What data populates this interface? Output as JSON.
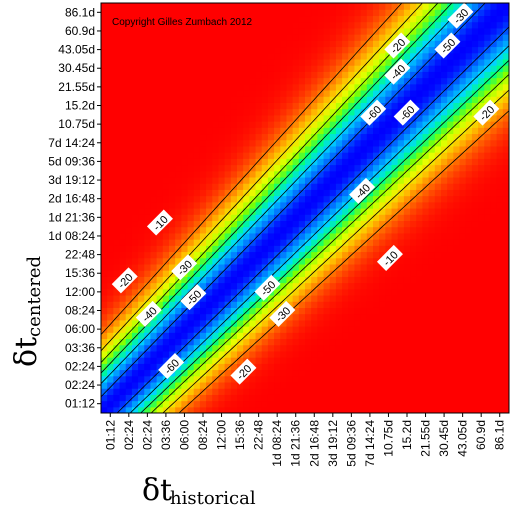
{
  "chart_data": {
    "type": "heatmap",
    "title": "",
    "copyright": "Copyright Gilles Zumbach 2012",
    "xlabel": {
      "symbol": "δt",
      "subscript": "historical"
    },
    "ylabel": {
      "symbol": "δt",
      "subscript": "centered"
    },
    "x_ticks": [
      "01:12",
      "02:24",
      "02:24",
      "03:36",
      "06:00",
      "08:24",
      "12:00",
      "15:36",
      "22:48",
      "1d 08:24",
      "1d 21:36",
      "2d 16:48",
      "3d 19:12",
      "5d 09:36",
      "7d 14:24",
      "10.75d",
      "15.2d",
      "21.55d",
      "30.45d",
      "43.05d",
      "60.9d",
      "86.1d"
    ],
    "y_ticks": [
      "86.1d",
      "60.9d",
      "43.05d",
      "30.45d",
      "21.55d",
      "15.2d",
      "10.75d",
      "7d 14:24",
      "5d 09:36",
      "3d 19:12",
      "2d 16:48",
      "1d 21:36",
      "1d 08:24",
      "22:48",
      "15:36",
      "12:00",
      "08:24",
      "06:00",
      "03:36",
      "02:24",
      "02:24",
      "01:12"
    ],
    "contour_levels": [
      -60,
      -50,
      -40,
      -30,
      -20,
      -10
    ],
    "contour_labels": [
      {
        "text": "-30",
        "x_index": 18.9,
        "y_index": 20.8
      },
      {
        "text": "-20",
        "x_index": 15.5,
        "y_index": 19.2
      },
      {
        "text": "-50",
        "x_index": 18.2,
        "y_index": 19.2
      },
      {
        "text": "-40",
        "x_index": 15.5,
        "y_index": 17.8
      },
      {
        "text": "-60",
        "x_index": 14.2,
        "y_index": 15.6
      },
      {
        "text": "-60",
        "x_index": 16.0,
        "y_index": 15.6
      },
      {
        "text": "-20",
        "x_index": 20.3,
        "y_index": 15.6
      },
      {
        "text": "-40",
        "x_index": 13.6,
        "y_index": 11.4
      },
      {
        "text": "-10",
        "x_index": 15.1,
        "y_index": 7.8
      },
      {
        "text": "-10",
        "x_index": 2.7,
        "y_index": 9.7
      },
      {
        "text": "-30",
        "x_index": 4.0,
        "y_index": 7.3
      },
      {
        "text": "-20",
        "x_index": 0.8,
        "y_index": 6.6
      },
      {
        "text": "-50",
        "x_index": 4.5,
        "y_index": 5.7
      },
      {
        "text": "-50",
        "x_index": 8.5,
        "y_index": 6.2
      },
      {
        "text": "-40",
        "x_index": 2.1,
        "y_index": 4.8
      },
      {
        "text": "-30",
        "x_index": 9.3,
        "y_index": 4.8
      },
      {
        "text": "-60",
        "x_index": 3.3,
        "y_index": 2.0
      },
      {
        "text": "-20",
        "x_index": 7.2,
        "y_index": 1.7
      }
    ],
    "colorscale": [
      "#0000ff",
      "#0080ff",
      "#00d8ff",
      "#00ff80",
      "#80ff00",
      "#e6ff00",
      "#ffc000",
      "#ff6000",
      "#ff0000"
    ],
    "value_range": [
      -65,
      0
    ],
    "grid": false,
    "legend": "none"
  }
}
